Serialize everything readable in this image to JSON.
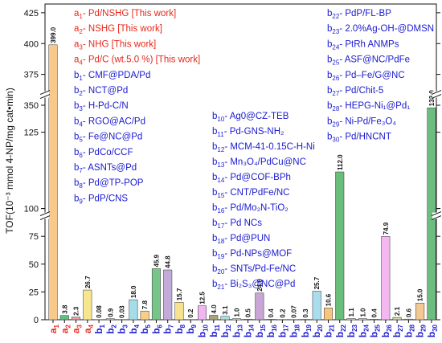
{
  "chart_data": {
    "type": "bar",
    "ylabel": "TOF(10⁻³ mmol 4-NP/mg cat•min)",
    "y_axis": {
      "scale": "broken",
      "segments": [
        {
          "range": [
            0,
            100
          ],
          "ticks": [
            0,
            25,
            50,
            75,
            100
          ]
        },
        {
          "range": [
            100,
            125
          ],
          "ticks": [
            100,
            125
          ]
        },
        {
          "range": [
            350,
            425
          ],
          "ticks": [
            350,
            375,
            400,
            425
          ]
        }
      ]
    },
    "categories": [
      {
        "p": "a",
        "s": "1"
      },
      {
        "p": "a",
        "s": "2"
      },
      {
        "p": "a",
        "s": "3"
      },
      {
        "p": "a",
        "s": "4"
      },
      {
        "p": "b",
        "s": "1"
      },
      {
        "p": "b",
        "s": "2"
      },
      {
        "p": "b",
        "s": "3"
      },
      {
        "p": "b",
        "s": "4"
      },
      {
        "p": "b",
        "s": "5"
      },
      {
        "p": "b",
        "s": "6"
      },
      {
        "p": "b",
        "s": "7"
      },
      {
        "p": "b",
        "s": "8"
      },
      {
        "p": "b",
        "s": "9"
      },
      {
        "p": "b",
        "s": "10"
      },
      {
        "p": "b",
        "s": "11"
      },
      {
        "p": "b",
        "s": "12"
      },
      {
        "p": "b",
        "s": "13"
      },
      {
        "p": "b",
        "s": "14"
      },
      {
        "p": "b",
        "s": "15"
      },
      {
        "p": "b",
        "s": "16"
      },
      {
        "p": "b",
        "s": "17"
      },
      {
        "p": "b",
        "s": "18"
      },
      {
        "p": "b",
        "s": "19"
      },
      {
        "p": "b",
        "s": "20"
      },
      {
        "p": "b",
        "s": "21"
      },
      {
        "p": "b",
        "s": "22"
      },
      {
        "p": "b",
        "s": "23"
      },
      {
        "p": "b",
        "s": "24"
      },
      {
        "p": "b",
        "s": "25"
      },
      {
        "p": "b",
        "s": "26"
      },
      {
        "p": "b",
        "s": "27"
      },
      {
        "p": "b",
        "s": "28"
      },
      {
        "p": "b",
        "s": "29"
      },
      {
        "p": "b",
        "s": "30"
      }
    ],
    "values": [
      399.0,
      3.8,
      2.3,
      26.7,
      0.08,
      0.9,
      0.03,
      18.0,
      7.8,
      45.9,
      44.8,
      15.7,
      0.2,
      12.5,
      4.0,
      3.1,
      1.0,
      0.5,
      24.0,
      0.4,
      0.2,
      0.07,
      0.3,
      25.7,
      10.6,
      112.0,
      1.1,
      1.0,
      0.4,
      74.9,
      2.1,
      0.6,
      15.0,
      133.0
    ],
    "value_labels": [
      "399.0",
      "3.8",
      "2.3",
      "26.7",
      "0.08",
      "0.9",
      "0.03",
      "18.0",
      "7.8",
      "45.9",
      "44.8",
      "15.7",
      "0.2",
      "12.5",
      "4.0",
      "3.1",
      "1.0",
      "0.5",
      "24.0",
      "0.4",
      "0.2",
      "0.07",
      "0.3",
      "25.7",
      "10.6",
      "112.0",
      "1.1",
      "1.0",
      "0.4",
      "74.9",
      "2.1",
      "0.6",
      "15.0",
      "133.0"
    ],
    "bar_colors": [
      "#f7c98b",
      "#5fbf7d",
      "#f29aa8",
      "#f7e58f",
      "#f7f2a4",
      "#f2d6c4",
      "#d8c6e8",
      "#a6dce8",
      "#f7cf86",
      "#78c58a",
      "#c3aad8",
      "#f7e38f",
      "#bcd3ee",
      "#f0b6ef",
      "#a8a47a",
      "#a9e0dc",
      "#e7eef5",
      "#dde8f3",
      "#c8a6d6",
      "#c9e6ee",
      "#e7eef3",
      "#ecf3f5",
      "#d8e8ea",
      "#a9dced",
      "#f6c680",
      "#6bbd7a",
      "#e3ecf5",
      "#e3ecf5",
      "#d5dce8",
      "#f3b8f0",
      "#c7d7a5",
      "#d3d3d3",
      "#f3c892",
      "#6cbd7f"
    ],
    "category_colors": {
      "a": "#e8281b",
      "b": "#1a1ad0"
    },
    "legend": {
      "color_a": "#e8281b",
      "color_b": "#1a1ad0",
      "col1": [
        {
          "p": "a",
          "s": "1",
          "t": "- Pd/NSHG [This work]",
          "g": "a"
        },
        {
          "p": "a",
          "s": "2",
          "t": "- NSHG [This work]",
          "g": "a"
        },
        {
          "p": "a",
          "s": "3",
          "t": "- NHG [This work]",
          "g": "a"
        },
        {
          "p": "a",
          "s": "4",
          "t": "- Pd/C (wt.5.0 %) [This work]",
          "g": "a"
        },
        {
          "p": "b",
          "s": "1",
          "t": "- CMF@PDA/Pd",
          "g": "b"
        },
        {
          "p": "b",
          "s": "2",
          "t": "- NCT@Pd",
          "g": "b"
        },
        {
          "p": "b",
          "s": "3",
          "t": "- H-Pd-C/N",
          "g": "b"
        },
        {
          "p": "b",
          "s": "4",
          "t": "- RGO@AC/Pd",
          "g": "b"
        },
        {
          "p": "b",
          "s": "5",
          "t": "- Fe@NC@Pd",
          "g": "b"
        },
        {
          "p": "b",
          "s": "6",
          "t": "- PdCo/CCF",
          "g": "b"
        },
        {
          "p": "b",
          "s": "7",
          "t": "- ASNTs@Pd",
          "g": "b"
        },
        {
          "p": "b",
          "s": "8",
          "t": "- Pd@TP-POP",
          "g": "b"
        },
        {
          "p": "b",
          "s": "9",
          "t": "- PdP/CNS",
          "g": "b"
        }
      ],
      "col2": [
        {
          "p": "b",
          "s": "10",
          "t": "- Ag0@CZ-TEB",
          "g": "b"
        },
        {
          "p": "b",
          "s": "11",
          "t": "- Pd-GNS-NH₂",
          "g": "b"
        },
        {
          "p": "b",
          "s": "12",
          "t": "- MCM-41-0.15C-H-Ni",
          "g": "b"
        },
        {
          "p": "b",
          "s": "13",
          "t": "- Mn₃O₄/PdCu@NC",
          "g": "b"
        },
        {
          "p": "b",
          "s": "14",
          "t": "- Pd@COF-BPh",
          "g": "b"
        },
        {
          "p": "b",
          "s": "15",
          "t": "- CNT/PdFe/NC",
          "g": "b"
        },
        {
          "p": "b",
          "s": "16",
          "t": "- Pd/Mo₂N-TiO₂",
          "g": "b"
        },
        {
          "p": "b",
          "s": "17",
          "t": "- Pd NCs",
          "g": "b"
        },
        {
          "p": "b",
          "s": "18",
          "t": "- Pd@PUN",
          "g": "b"
        },
        {
          "p": "b",
          "s": "19",
          "t": "- Pd-NPs@MOF",
          "g": "b"
        },
        {
          "p": "b",
          "s": "20",
          "t": "- SNTs/Pd-Fe/NC",
          "g": "b"
        },
        {
          "p": "b",
          "s": "21",
          "t": "- Bi₂S₃@NC@Pd",
          "g": "b"
        }
      ],
      "col3": [
        {
          "p": "b",
          "s": "22",
          "t": "- PdP/FL-BP",
          "g": "b"
        },
        {
          "p": "b",
          "s": "23",
          "t": "- 2.0%Ag-OH-@DMSN",
          "g": "b"
        },
        {
          "p": "b",
          "s": "24",
          "t": "- PtRh ANMPs",
          "g": "b"
        },
        {
          "p": "b",
          "s": "25",
          "t": "- ASF@NC/PdFe",
          "g": "b"
        },
        {
          "p": "b",
          "s": "26",
          "t": "- Pd–Fe/G@NC",
          "g": "b"
        },
        {
          "p": "b",
          "s": "27",
          "t": "- Pd/Chit-5",
          "g": "b"
        },
        {
          "p": "b",
          "s": "28",
          "t": "- HEPG-Ni₁@Pd₁",
          "g": "b"
        },
        {
          "p": "b",
          "s": "29",
          "t": "- Ni-Pd/Fe₃O₄",
          "g": "b"
        },
        {
          "p": "b",
          "s": "30",
          "t": "- Pd/HNCNT",
          "g": "b"
        }
      ]
    }
  }
}
